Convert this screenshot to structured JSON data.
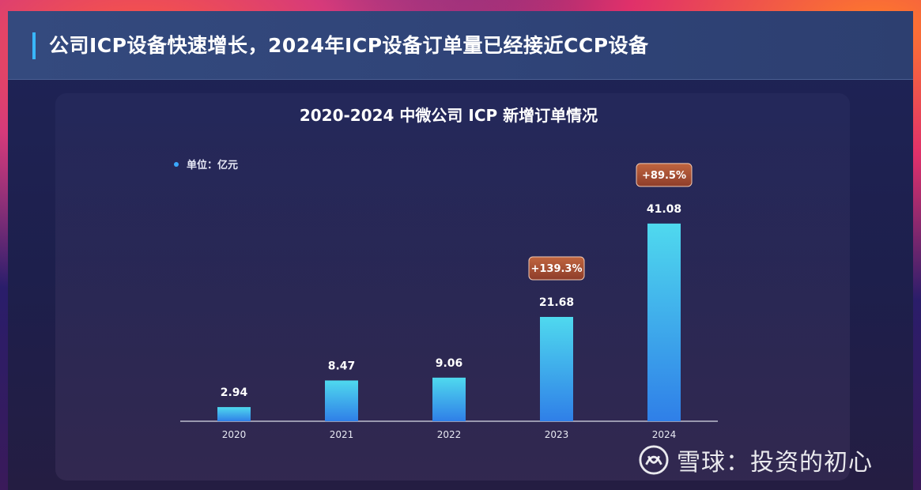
{
  "header": {
    "title": "公司ICP设备快速增长，2024年ICP设备订单量已经接近CCP设备"
  },
  "chart_data": {
    "type": "bar",
    "title": "2020-2024 中微公司 ICP 新增订单情况",
    "unit": "单位：亿元",
    "categories": [
      "2020",
      "2021",
      "2022",
      "2023",
      "2024"
    ],
    "values": [
      2.94,
      8.47,
      9.06,
      21.68,
      41.08
    ],
    "value_labels": [
      "2.94",
      "8.47",
      "9.06",
      "21.68",
      "41.08"
    ],
    "growth_labels": [
      "",
      "",
      "",
      "+139.3%",
      "+89.5%"
    ],
    "ylim": [
      0,
      45
    ],
    "grid": false,
    "bar_color_top": "#4fd9ee",
    "bar_color_bottom": "#2f7fe8",
    "badge_color": "#a84e33"
  },
  "watermark": {
    "text": "雪球：投资的初心"
  }
}
